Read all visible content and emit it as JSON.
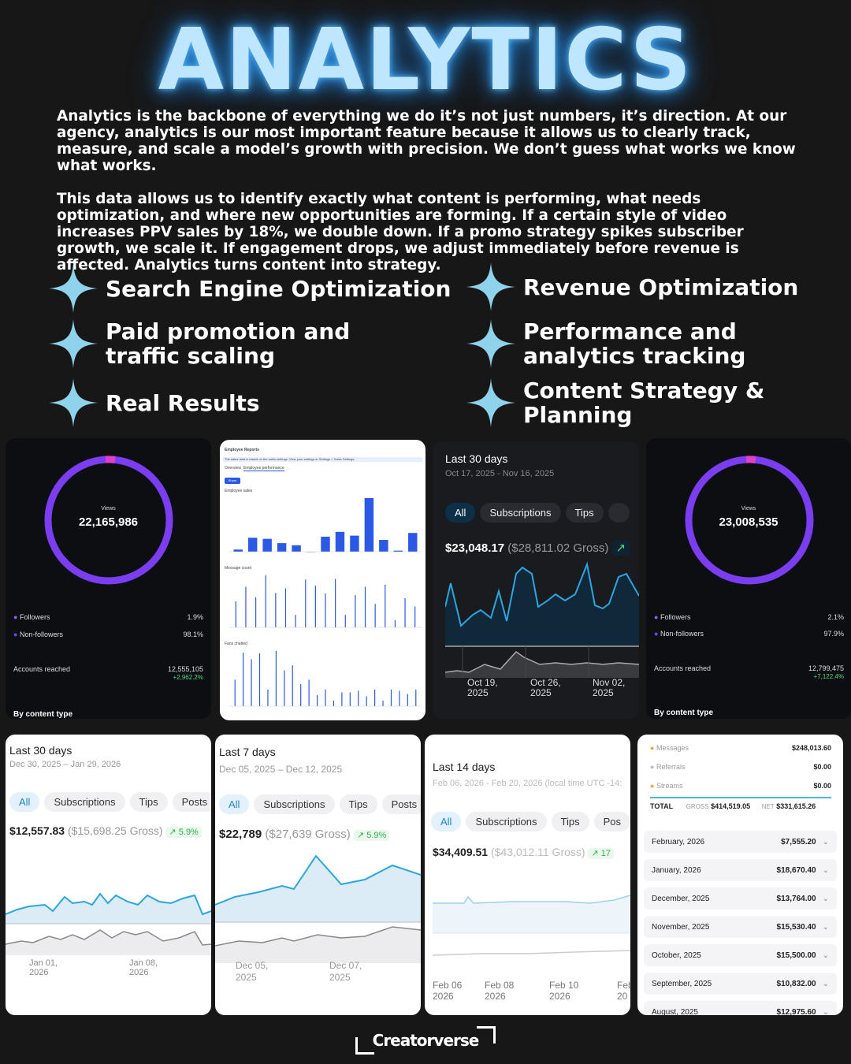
{
  "hero": {
    "title": "ANALYTICS"
  },
  "intro": {
    "p1": "Analytics is the backbone of everything we do it’s not just numbers, it’s direction. At our agency, analytics is our most important feature because it allows us to clearly track, measure, and scale a model’s growth with precision. We don’t guess what works we know what works.",
    "p2": "This data allows us to identify exactly what content is performing, what needs optimization, and where new opportunities are forming. If a certain style of video increases PPV sales by 18%, we double down. If a promo strategy spikes subscriber growth, we scale it. If engagement drops, we adjust immediately before revenue is affected. Analytics turns content into strategy."
  },
  "features": [
    "Search Engine Optimization",
    "Revenue Optimization",
    "Paid promotion and traffic scaling",
    "Performance and analytics tracking",
    "Real Results",
    "Content Strategy & Planning"
  ],
  "accent": "#7b3df0",
  "glow": "#5ab8ff",
  "card1": {
    "views_label": "Views",
    "views": "22,165,986",
    "followers_label": "Followers",
    "followers_pct": "1.9%",
    "nonfollowers_label": "Non-followers",
    "nonfollowers_pct": "98.1%",
    "reached_label": "Accounts reached",
    "reached": "12,555,105",
    "reached_change": "+2,962.2%",
    "footer": "By content type"
  },
  "card2": {
    "title": "Employee Reports",
    "notice": "The sales data is based on the sales settings. View your settings in Settings > Sales Settings.",
    "tab1": "Overview",
    "tab2": "Employee performance",
    "button": "Share",
    "chart1": "Employee sales",
    "chart2": "Message count",
    "chart3": "Fans chatted"
  },
  "card3": {
    "title": "Last 30 days",
    "range": "Oct 17, 2025 - Nov 16, 2025",
    "tabs": [
      "All",
      "Subscriptions",
      "Tips"
    ],
    "net": "$23,048.17",
    "gross": "($28,811.02 Gross)",
    "x": [
      "Oct 19,",
      "2025",
      "Oct 26,",
      "2025",
      "Nov 02,",
      "2025"
    ]
  },
  "card4": {
    "views_label": "Views",
    "views": "23,008,535",
    "followers_label": "Followers",
    "followers_pct": "2.1%",
    "nonfollowers_label": "Non-followers",
    "nonfollowers_pct": "97.9%",
    "reached_label": "Accounts reached",
    "reached": "12,799,475",
    "reached_change": "+7,122.4%",
    "footer": "By content type"
  },
  "card5": {
    "title": "Last 30 days",
    "range": "Dec 30, 2025 – Jan 29, 2026",
    "tabs": [
      "All",
      "Subscriptions",
      "Tips",
      "Posts"
    ],
    "net": "$12,557.83",
    "gross": "($15,698.25 Gross)",
    "change": "5.9%",
    "x": [
      "Jan 01,",
      "2026",
      "Jan 08,",
      "2026"
    ]
  },
  "card6": {
    "title": "Last 7 days",
    "range": "Dec 05, 2025 – Dec 12, 2025",
    "tabs": [
      "All",
      "Subscriptions",
      "Tips",
      "Posts"
    ],
    "net": "$22,789",
    "gross": "($27,639 Gross)",
    "change": "5.9%",
    "x": [
      "Dec 05,",
      "2025",
      "Dec 07,",
      "2025"
    ]
  },
  "card7": {
    "title": "Last 14 days",
    "range": "Feb 06, 2026 - Feb 20, 2026 (local time UTC -14:",
    "tabs": [
      "All",
      "Subscriptions",
      "Tips",
      "Pos"
    ],
    "net": "$34,409.51",
    "gross": "($43,012.11 Gross)",
    "change": "17",
    "x": [
      "Feb 06",
      "2026",
      "Feb 08",
      "2026",
      "Feb 10",
      "2026",
      "Feb",
      "20"
    ]
  },
  "card8": {
    "breakdown": [
      {
        "label": "Messages",
        "value": "$248,013.60"
      },
      {
        "label": "Referrals",
        "value": "$0.00"
      },
      {
        "label": "Streams",
        "value": "$0.00"
      }
    ],
    "total_label": "TOTAL",
    "gross_label": "GROSS",
    "gross": "$414,519.05",
    "net_label": "NET",
    "net": "$331,615.26",
    "months": [
      {
        "month": "February, 2026",
        "value": "$7,555.20"
      },
      {
        "month": "January, 2026",
        "value": "$18,670.40"
      },
      {
        "month": "December, 2025",
        "value": "$13,764.00"
      },
      {
        "month": "November, 2025",
        "value": "$15,530.40"
      },
      {
        "month": "October, 2025",
        "value": "$15,500.00"
      },
      {
        "month": "September, 2025",
        "value": "$10,832.00"
      },
      {
        "month": "August, 2025",
        "value": "$12,975.60"
      }
    ]
  },
  "brand": "Creatorverse"
}
